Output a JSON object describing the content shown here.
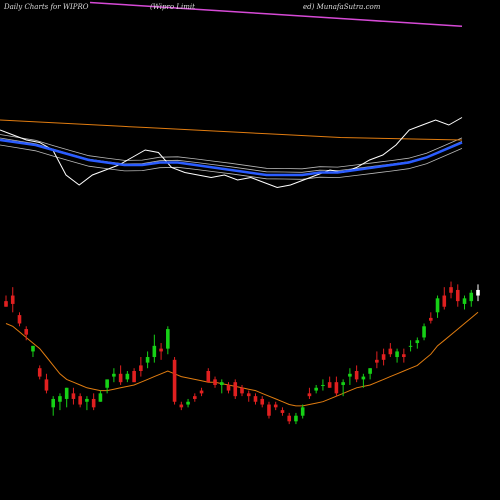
{
  "captions": {
    "left": "Daily Charts for WIPRO",
    "middle": "(Wipro  Limit",
    "right": "ed) MunafaSutra.com"
  },
  "colors": {
    "background": "#000000",
    "up_candle": "#16d116",
    "down_candle": "#e02020",
    "last_candle": "#ffffff",
    "candle_ma": "#e07c10",
    "long_ma_magenta": "#d64ad6",
    "long_ma_orange": "#e07c10",
    "price_line": "#ffffff",
    "mid_ma_blue": "#2a5cff",
    "ribbon_lines": "#b8b8b8"
  },
  "chart_data": [
    {
      "type": "candlestick",
      "panel": "price",
      "ohlc": [
        [
          0.64,
          0.66,
          0.62,
          0.62
        ],
        [
          0.66,
          0.69,
          0.6,
          0.63
        ],
        [
          0.59,
          0.6,
          0.55,
          0.56
        ],
        [
          0.54,
          0.55,
          0.5,
          0.52
        ],
        [
          0.46,
          0.48,
          0.44,
          0.48
        ],
        [
          0.4,
          0.41,
          0.36,
          0.37
        ],
        [
          0.36,
          0.38,
          0.31,
          0.32
        ],
        [
          0.26,
          0.3,
          0.23,
          0.29
        ],
        [
          0.28,
          0.31,
          0.25,
          0.3
        ],
        [
          0.29,
          0.33,
          0.26,
          0.33
        ],
        [
          0.31,
          0.33,
          0.27,
          0.29
        ],
        [
          0.3,
          0.31,
          0.26,
          0.27
        ],
        [
          0.28,
          0.3,
          0.25,
          0.29
        ],
        [
          0.29,
          0.31,
          0.25,
          0.26
        ],
        [
          0.28,
          0.32,
          0.28,
          0.31
        ],
        [
          0.33,
          0.36,
          0.31,
          0.36
        ],
        [
          0.37,
          0.4,
          0.35,
          0.38
        ],
        [
          0.38,
          0.41,
          0.34,
          0.35
        ],
        [
          0.36,
          0.39,
          0.35,
          0.38
        ],
        [
          0.39,
          0.4,
          0.35,
          0.35
        ],
        [
          0.41,
          0.44,
          0.37,
          0.39
        ],
        [
          0.42,
          0.46,
          0.4,
          0.44
        ],
        [
          0.44,
          0.52,
          0.42,
          0.48
        ],
        [
          0.47,
          0.49,
          0.43,
          0.46
        ],
        [
          0.47,
          0.55,
          0.45,
          0.54
        ],
        [
          0.43,
          0.44,
          0.27,
          0.28
        ],
        [
          0.27,
          0.28,
          0.25,
          0.26
        ],
        [
          0.27,
          0.29,
          0.26,
          0.28
        ],
        [
          0.3,
          0.31,
          0.28,
          0.29
        ],
        [
          0.32,
          0.33,
          0.3,
          0.31
        ],
        [
          0.39,
          0.4,
          0.35,
          0.35
        ],
        [
          0.36,
          0.37,
          0.33,
          0.34
        ],
        [
          0.34,
          0.36,
          0.31,
          0.35
        ],
        [
          0.34,
          0.35,
          0.31,
          0.32
        ],
        [
          0.35,
          0.36,
          0.29,
          0.3
        ],
        [
          0.33,
          0.34,
          0.3,
          0.31
        ],
        [
          0.31,
          0.32,
          0.28,
          0.3
        ],
        [
          0.3,
          0.31,
          0.27,
          0.28
        ],
        [
          0.29,
          0.3,
          0.26,
          0.27
        ],
        [
          0.27,
          0.28,
          0.22,
          0.23
        ],
        [
          0.27,
          0.28,
          0.25,
          0.26
        ],
        [
          0.25,
          0.26,
          0.23,
          0.24
        ],
        [
          0.23,
          0.24,
          0.2,
          0.21
        ],
        [
          0.21,
          0.24,
          0.2,
          0.23
        ],
        [
          0.23,
          0.27,
          0.22,
          0.26
        ],
        [
          0.31,
          0.33,
          0.29,
          0.3
        ],
        [
          0.32,
          0.34,
          0.31,
          0.33
        ],
        [
          0.34,
          0.36,
          0.32,
          0.34
        ],
        [
          0.35,
          0.37,
          0.33,
          0.33
        ],
        [
          0.35,
          0.37,
          0.3,
          0.31
        ],
        [
          0.34,
          0.36,
          0.3,
          0.35
        ],
        [
          0.37,
          0.4,
          0.34,
          0.38
        ],
        [
          0.39,
          0.41,
          0.35,
          0.36
        ],
        [
          0.36,
          0.38,
          0.33,
          0.37
        ],
        [
          0.38,
          0.4,
          0.36,
          0.4
        ],
        [
          0.43,
          0.46,
          0.4,
          0.42
        ],
        [
          0.45,
          0.47,
          0.41,
          0.43
        ],
        [
          0.47,
          0.49,
          0.44,
          0.45
        ],
        [
          0.44,
          0.47,
          0.42,
          0.46
        ],
        [
          0.45,
          0.47,
          0.42,
          0.44
        ],
        [
          0.48,
          0.5,
          0.46,
          0.48
        ],
        [
          0.49,
          0.51,
          0.47,
          0.5
        ],
        [
          0.51,
          0.56,
          0.5,
          0.55
        ],
        [
          0.58,
          0.6,
          0.56,
          0.57
        ],
        [
          0.6,
          0.66,
          0.58,
          0.65
        ],
        [
          0.66,
          0.69,
          0.61,
          0.62
        ],
        [
          0.69,
          0.71,
          0.65,
          0.67
        ],
        [
          0.68,
          0.7,
          0.62,
          0.64
        ],
        [
          0.63,
          0.66,
          0.61,
          0.65
        ],
        [
          0.64,
          0.68,
          0.62,
          0.67
        ],
        [
          0.68,
          0.7,
          0.64,
          0.66
        ]
      ],
      "moving_average": [
        0.56,
        0.55,
        0.53,
        0.51,
        0.49,
        0.47,
        0.44,
        0.41,
        0.38,
        0.36,
        0.35,
        0.34,
        0.33,
        0.325,
        0.32,
        0.32,
        0.325,
        0.33,
        0.335,
        0.34,
        0.35,
        0.36,
        0.37,
        0.38,
        0.39,
        0.38,
        0.37,
        0.365,
        0.36,
        0.355,
        0.35,
        0.35,
        0.345,
        0.34,
        0.335,
        0.33,
        0.325,
        0.32,
        0.31,
        0.3,
        0.29,
        0.28,
        0.27,
        0.265,
        0.265,
        0.27,
        0.275,
        0.28,
        0.29,
        0.3,
        0.31,
        0.32,
        0.33,
        0.335,
        0.34,
        0.35,
        0.36,
        0.37,
        0.38,
        0.39,
        0.4,
        0.41,
        0.43,
        0.45,
        0.48,
        0.5,
        0.52,
        0.54,
        0.56,
        0.58,
        0.6
      ]
    },
    {
      "type": "line",
      "panel": "indicators",
      "series": [
        {
          "key": "magenta",
          "values": [
            0.99,
            0.985,
            0.98,
            0.975,
            0.97,
            0.965,
            0.96,
            0.955,
            0.95,
            0.945,
            0.94,
            0.935,
            0.93,
            0.925,
            0.92,
            0.915,
            0.91,
            0.905,
            0.9,
            0.895
          ]
        },
        {
          "key": "orange",
          "values": [
            0.52,
            0.515,
            0.51,
            0.505,
            0.5,
            0.495,
            0.49,
            0.485,
            0.48,
            0.475,
            0.47,
            0.465,
            0.46,
            0.455,
            0.45,
            0.448,
            0.446,
            0.444,
            0.442,
            0.44
          ]
        },
        {
          "key": "price",
          "values": [
            0.48,
            0.46,
            0.44,
            0.43,
            0.4,
            0.3,
            0.26,
            0.3,
            0.32,
            0.34,
            0.37,
            0.4,
            0.39,
            0.33,
            0.31,
            0.3,
            0.29,
            0.3,
            0.28,
            0.29,
            0.27,
            0.25,
            0.26,
            0.28,
            0.3,
            0.32,
            0.31,
            0.33,
            0.36,
            0.38,
            0.42,
            0.48,
            0.5,
            0.52,
            0.5,
            0.53
          ]
        },
        {
          "key": "blue",
          "values": [
            0.44,
            0.43,
            0.42,
            0.4,
            0.38,
            0.36,
            0.35,
            0.34,
            0.34,
            0.35,
            0.35,
            0.34,
            0.33,
            0.32,
            0.31,
            0.3,
            0.3,
            0.3,
            0.31,
            0.31,
            0.32,
            0.33,
            0.34,
            0.35,
            0.37,
            0.4,
            0.43
          ]
        }
      ]
    }
  ]
}
